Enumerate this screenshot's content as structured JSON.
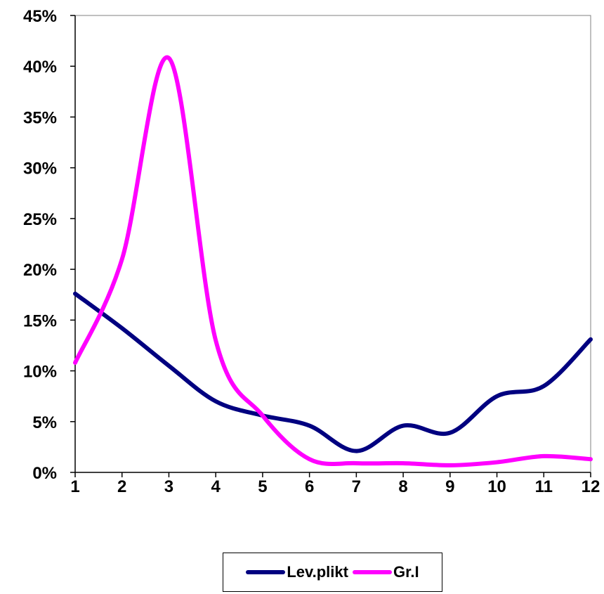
{
  "chart_data": {
    "type": "line",
    "categories": [
      "1",
      "2",
      "3",
      "4",
      "5",
      "6",
      "7",
      "8",
      "9",
      "10",
      "11",
      "12"
    ],
    "x": [
      1,
      2,
      3,
      4,
      5,
      6,
      7,
      8,
      9,
      10,
      11,
      12
    ],
    "series": [
      {
        "name": "Lev.plikt",
        "color": "#000080",
        "values": [
          17.6,
          14.2,
          10.5,
          7.0,
          5.6,
          4.6,
          2.1,
          4.6,
          3.9,
          7.5,
          8.5,
          13.1
        ]
      },
      {
        "name": "Gr.I",
        "color": "#FF00FF",
        "values": [
          10.8,
          21.0,
          40.8,
          13.0,
          5.6,
          1.3,
          0.9,
          0.9,
          0.7,
          1.0,
          1.6,
          1.3
        ]
      }
    ],
    "yticks": [
      "0%",
      "5%",
      "10%",
      "15%",
      "20%",
      "25%",
      "30%",
      "35%",
      "40%",
      "45%"
    ],
    "ylim": [
      0,
      45
    ],
    "xlim": [
      1,
      12
    ],
    "grid": false,
    "legend_position": "bottom",
    "title": "",
    "xlabel": "",
    "ylabel": ""
  }
}
